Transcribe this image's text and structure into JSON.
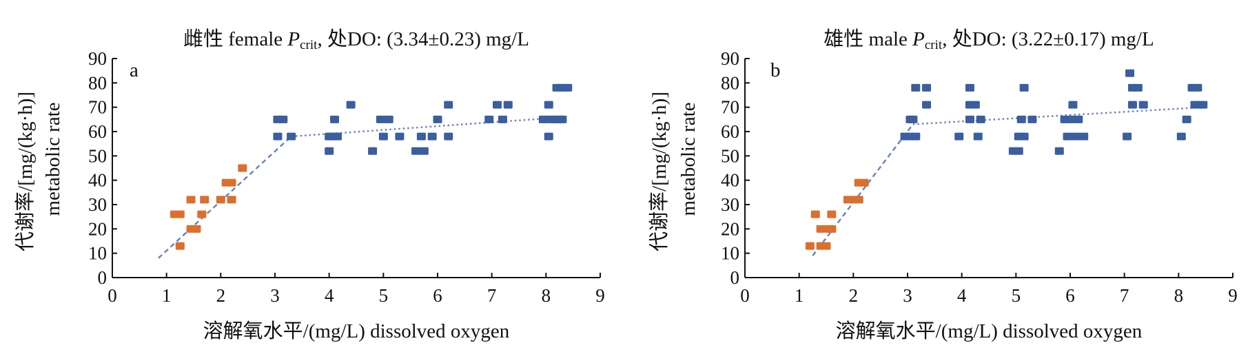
{
  "figure": {
    "panels": [
      {
        "panel_label": "a",
        "title": "雌性 female P_crit, 处DO: (3.34±0.23) mg/L",
        "title_parts": {
          "pre": "雌性 female ",
          "italic": "P",
          "sub": "crit",
          "post": ", 处DO: (3.34±0.23) mg/L"
        },
        "xlabel": "溶解氧水平/(mg/L) dissolved oxygen",
        "ylabel_line1": "代谢率/[mg/(kg·h)]",
        "ylabel_line2": "metabolic rate"
      },
      {
        "panel_label": "b",
        "title": "雄性 male P_crit, 处DO: (3.22±0.17) mg/L",
        "title_parts": {
          "pre": "雄性 male ",
          "italic": "P",
          "sub": "crit",
          "post": ", 处DO: (3.22±0.17) mg/L"
        },
        "xlabel": "溶解氧水平/(mg/L) dissolved oxygen",
        "ylabel_line1": "代谢率/[mg/(kg·h)]",
        "ylabel_line2": "metabolic rate"
      }
    ]
  },
  "chart_data": [
    {
      "type": "scatter",
      "panel": "a",
      "title": "雌性 female P_crit, 处DO: (3.34±0.23) mg/L",
      "xlabel": "溶解氧水平/(mg/L) dissolved oxygen",
      "ylabel": "代谢率/[mg/(kg·h)] metabolic rate",
      "xlim": [
        0,
        9
      ],
      "ylim": [
        0,
        90
      ],
      "xticks": [
        0,
        1,
        2,
        3,
        4,
        5,
        6,
        7,
        8,
        9
      ],
      "yticks": [
        0,
        10,
        20,
        30,
        40,
        50,
        60,
        70,
        80,
        90
      ],
      "grid": false,
      "colors": {
        "below": "#D9702F",
        "above": "#3A5E9E",
        "fit": "#6B82BE"
      },
      "series": [
        {
          "role": "below-critical",
          "points": [
            [
              1.15,
              26
            ],
            [
              1.25,
              26
            ],
            [
              1.25,
              13
            ],
            [
              1.45,
              32
            ],
            [
              1.45,
              20
            ],
            [
              1.55,
              20
            ],
            [
              1.65,
              26
            ],
            [
              1.7,
              32
            ],
            [
              2.0,
              32
            ],
            [
              2.1,
              39
            ],
            [
              2.2,
              32
            ],
            [
              2.2,
              39
            ],
            [
              2.4,
              45
            ]
          ]
        },
        {
          "role": "above-critical",
          "points": [
            [
              3.05,
              65
            ],
            [
              3.05,
              58
            ],
            [
              3.15,
              65
            ],
            [
              3.3,
              58
            ],
            [
              4.0,
              58
            ],
            [
              4.0,
              52
            ],
            [
              4.05,
              58
            ],
            [
              4.1,
              65
            ],
            [
              4.15,
              58
            ],
            [
              4.4,
              71
            ],
            [
              4.8,
              52
            ],
            [
              4.95,
              65
            ],
            [
              5.0,
              58
            ],
            [
              5.1,
              65
            ],
            [
              5.3,
              58
            ],
            [
              5.6,
              52
            ],
            [
              5.7,
              58
            ],
            [
              5.75,
              52
            ],
            [
              5.9,
              58
            ],
            [
              6.0,
              65
            ],
            [
              6.2,
              71
            ],
            [
              6.2,
              58
            ],
            [
              6.95,
              65
            ],
            [
              7.1,
              71
            ],
            [
              7.2,
              65
            ],
            [
              7.3,
              71
            ],
            [
              7.95,
              65
            ],
            [
              8.05,
              71
            ],
            [
              8.05,
              58
            ],
            [
              8.1,
              65
            ],
            [
              8.15,
              65
            ],
            [
              8.2,
              78
            ],
            [
              8.25,
              65
            ],
            [
              8.3,
              78
            ],
            [
              8.3,
              65
            ],
            [
              8.4,
              78
            ]
          ]
        }
      ],
      "fit_lines": [
        {
          "segment": "lower",
          "x": [
            0.85,
            3.3
          ],
          "y": [
            8,
            58
          ]
        },
        {
          "segment": "upper",
          "x": [
            3.3,
            8.4
          ],
          "y": [
            58,
            66
          ]
        }
      ]
    },
    {
      "type": "scatter",
      "panel": "b",
      "title": "雄性 male P_crit, 处DO: (3.22±0.17) mg/L",
      "xlabel": "溶解氧水平/(mg/L) dissolved oxygen",
      "ylabel": "代谢率/[mg/(kg·h)] metabolic rate",
      "xlim": [
        0,
        9
      ],
      "ylim": [
        0,
        90
      ],
      "xticks": [
        0,
        1,
        2,
        3,
        4,
        5,
        6,
        7,
        8,
        9
      ],
      "yticks": [
        0,
        10,
        20,
        30,
        40,
        50,
        60,
        70,
        80,
        90
      ],
      "grid": false,
      "colors": {
        "below": "#D9702F",
        "above": "#3A5E9E",
        "fit": "#6B82BE"
      },
      "series": [
        {
          "role": "below-critical",
          "points": [
            [
              1.2,
              13
            ],
            [
              1.3,
              26
            ],
            [
              1.4,
              20
            ],
            [
              1.4,
              13
            ],
            [
              1.5,
              13
            ],
            [
              1.55,
              20
            ],
            [
              1.6,
              26
            ],
            [
              1.6,
              20
            ],
            [
              1.9,
              32
            ],
            [
              2.0,
              32
            ],
            [
              2.1,
              39
            ],
            [
              2.1,
              32
            ],
            [
              2.2,
              39
            ]
          ]
        },
        {
          "role": "above-critical",
          "points": [
            [
              2.95,
              58
            ],
            [
              3.05,
              65
            ],
            [
              3.05,
              58
            ],
            [
              3.1,
              65
            ],
            [
              3.15,
              58
            ],
            [
              3.15,
              78
            ],
            [
              3.35,
              78
            ],
            [
              3.35,
              71
            ],
            [
              3.95,
              58
            ],
            [
              4.15,
              78
            ],
            [
              4.15,
              71
            ],
            [
              4.15,
              65
            ],
            [
              4.25,
              71
            ],
            [
              4.3,
              58
            ],
            [
              4.35,
              65
            ],
            [
              4.95,
              52
            ],
            [
              5.05,
              52
            ],
            [
              5.05,
              58
            ],
            [
              5.1,
              65
            ],
            [
              5.15,
              78
            ],
            [
              5.15,
              58
            ],
            [
              5.3,
              65
            ],
            [
              5.8,
              52
            ],
            [
              5.9,
              65
            ],
            [
              5.95,
              58
            ],
            [
              6.0,
              65
            ],
            [
              6.05,
              71
            ],
            [
              6.1,
              58
            ],
            [
              6.15,
              65
            ],
            [
              6.25,
              58
            ],
            [
              7.05,
              58
            ],
            [
              7.1,
              84
            ],
            [
              7.15,
              78
            ],
            [
              7.15,
              71
            ],
            [
              7.25,
              78
            ],
            [
              7.35,
              71
            ],
            [
              8.05,
              58
            ],
            [
              8.15,
              65
            ],
            [
              8.25,
              78
            ],
            [
              8.3,
              71
            ],
            [
              8.35,
              78
            ],
            [
              8.4,
              71
            ],
            [
              8.45,
              71
            ]
          ]
        }
      ],
      "fit_lines": [
        {
          "segment": "lower",
          "x": [
            1.25,
            3.1
          ],
          "y": [
            9,
            63
          ]
        },
        {
          "segment": "upper",
          "x": [
            3.1,
            8.45
          ],
          "y": [
            63,
            70
          ]
        }
      ]
    }
  ]
}
